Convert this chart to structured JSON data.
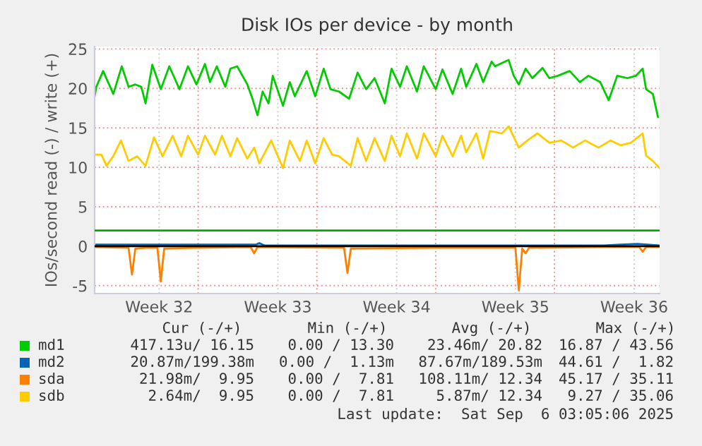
{
  "chart_data": {
    "type": "line",
    "title": "Disk IOs per device - by month",
    "ylabel": "IOs/second read (-) / write (+)",
    "xlim": [
      "2025-08-03T21:36",
      "2025-09-06T04:48"
    ],
    "ylim": [
      -6,
      25.3
    ],
    "xticks": [
      {
        "value": "2025-08-07T16:48",
        "label": "Week 32"
      },
      {
        "value": "2025-08-10T00:00",
        "label": null
      },
      {
        "value": "2025-08-14T16:48",
        "label": "Week 33"
      },
      {
        "value": "2025-08-17T00:00",
        "label": null
      },
      {
        "value": "2025-08-21T16:48",
        "label": "Week 34"
      },
      {
        "value": "2025-08-24T00:00",
        "label": null
      },
      {
        "value": "2025-08-28T16:48",
        "label": "Week 35"
      },
      {
        "value": "2025-08-31T00:00",
        "label": null
      },
      {
        "value": "2025-09-04T16:48",
        "label": "Week 36"
      }
    ],
    "yticks": [
      -5,
      0,
      5,
      10,
      15,
      20,
      25
    ],
    "grid": true,
    "legend": "bottom",
    "marker": "none",
    "line_style": "solid",
    "ref_lines": [
      {
        "axis": "y",
        "value": 2,
        "color": "#00aa00"
      },
      {
        "axis": "y",
        "value": 0,
        "color": "#000000"
      }
    ],
    "series": [
      {
        "name": "md1",
        "color": "#00cc00",
        "x": [
          "2025-08-03T21:36",
          "2025-08-04T00:00",
          "2025-08-04T09:36",
          "2025-08-05T00:00",
          "2025-08-05T12:00",
          "2025-08-05T21:36",
          "2025-08-06T07:12",
          "2025-08-06T15:36",
          "2025-08-06T21:36",
          "2025-08-07T07:12",
          "2025-08-07T19:12",
          "2025-08-08T07:12",
          "2025-08-08T21:36",
          "2025-08-09T09:36",
          "2025-08-09T21:36",
          "2025-08-10T09:36",
          "2025-08-10T16:48",
          "2025-08-11T02:24",
          "2025-08-11T14:24",
          "2025-08-11T21:36",
          "2025-08-12T07:12",
          "2025-08-12T21:36",
          "2025-08-13T04:48",
          "2025-08-13T12:00",
          "2025-08-13T19:12",
          "2025-08-14T03:36",
          "2025-08-14T09:36",
          "2025-08-15T00:00",
          "2025-08-15T09:36",
          "2025-08-15T16:48",
          "2025-08-16T09:36",
          "2025-08-16T21:36",
          "2025-08-17T09:36",
          "2025-08-17T19:12",
          "2025-08-18T07:12",
          "2025-08-18T21:36",
          "2025-08-19T09:36",
          "2025-08-19T21:36",
          "2025-08-20T09:36",
          "2025-08-21T00:00",
          "2025-08-21T09:36",
          "2025-08-21T21:36",
          "2025-08-22T07:12",
          "2025-08-22T21:36",
          "2025-08-23T07:12",
          "2025-08-24T00:00",
          "2025-08-24T09:36",
          "2025-08-25T00:00",
          "2025-08-25T12:00",
          "2025-08-25T19:12",
          "2025-08-26T09:36",
          "2025-08-26T19:12",
          "2025-08-27T07:12",
          "2025-08-27T12:00",
          "2025-08-27T19:12",
          "2025-08-28T07:12",
          "2025-08-28T14:24",
          "2025-08-28T21:36",
          "2025-08-29T07:12",
          "2025-08-29T16:48",
          "2025-08-30T07:12",
          "2025-08-30T16:48",
          "2025-08-31T04:48",
          "2025-08-31T21:36",
          "2025-09-01T12:00",
          "2025-09-02T00:00",
          "2025-09-02T16:48",
          "2025-09-03T04:48",
          "2025-09-03T16:48",
          "2025-09-04T07:12",
          "2025-09-04T19:12",
          "2025-09-05T04:48",
          "2025-09-05T09:36",
          "2025-09-05T19:12",
          "2025-09-06T02:24"
        ],
        "values": [
          19,
          20.2,
          22.2,
          19.3,
          22.8,
          20.2,
          20.5,
          20.2,
          18.1,
          23,
          19.9,
          22.8,
          19.9,
          22.8,
          20.5,
          23.1,
          20.8,
          22.8,
          20.2,
          22.5,
          22.8,
          20.5,
          18.7,
          16.6,
          19.6,
          18.1,
          21.6,
          17.8,
          20.8,
          19,
          22.2,
          19,
          22.5,
          19.9,
          19.6,
          18.7,
          22,
          19.9,
          21.3,
          18.1,
          22.5,
          20.2,
          22.8,
          19.6,
          22.8,
          19.9,
          22.4,
          19.3,
          22.5,
          20.2,
          23.1,
          20.8,
          23.4,
          22.8,
          23.1,
          23.6,
          21.6,
          20.5,
          22.5,
          21.3,
          22.6,
          21.3,
          21.6,
          22.2,
          20.8,
          21.6,
          20.8,
          18.5,
          21.6,
          21.3,
          21.6,
          22.5,
          19.9,
          19.3,
          16.4
        ]
      },
      {
        "name": "md2",
        "color": "#0066b3",
        "x": [
          "2025-08-03T21:36",
          "2025-08-13T09:36",
          "2025-08-13T14:24",
          "2025-08-13T21:36",
          "2025-09-02T21:36",
          "2025-09-03T21:36",
          "2025-09-04T21:36",
          "2025-09-06T04:48"
        ],
        "values": [
          0.2,
          0.2,
          0.4,
          0.1,
          0.1,
          0.2,
          0.3,
          0.1
        ]
      },
      {
        "name": "sda",
        "color": "#ff8000",
        "x": [
          "2025-08-03T21:36",
          "2025-08-05T21:36",
          "2025-08-06T02:24",
          "2025-08-06T07:12",
          "2025-08-06T21:36",
          "2025-08-07T14:24",
          "2025-08-07T19:12",
          "2025-08-08T00:00",
          "2025-08-09T21:36",
          "2025-08-13T02:24",
          "2025-08-13T07:12",
          "2025-08-13T12:00",
          "2025-08-18T14:24",
          "2025-08-18T19:12",
          "2025-08-19T00:00",
          "2025-08-23T21:36",
          "2025-08-28T16:48",
          "2025-08-28T21:36",
          "2025-08-29T02:24",
          "2025-08-29T07:12",
          "2025-08-29T12:00",
          "2025-09-02T21:36",
          "2025-09-05T00:00",
          "2025-09-05T04:48",
          "2025-09-05T09:36",
          "2025-09-06T04:48"
        ],
        "values": [
          -0.1,
          -0.2,
          -3.6,
          -0.3,
          -0.2,
          -0.2,
          -4.5,
          -0.3,
          -0.2,
          -0.1,
          -0.9,
          -0.1,
          -0.2,
          -3.4,
          -0.3,
          -0.2,
          -0.2,
          -5.6,
          -0.3,
          -0.9,
          -0.2,
          -0.1,
          -0.1,
          -0.7,
          -0.1,
          -0.1
        ]
      },
      {
        "name": "sdb",
        "color": "#ffcc00",
        "x": [
          "2025-08-03T21:36",
          "2025-08-04T07:12",
          "2025-08-04T14:24",
          "2025-08-05T00:00",
          "2025-08-05T10:48",
          "2025-08-05T21:36",
          "2025-08-06T09:36",
          "2025-08-06T21:36",
          "2025-08-07T09:36",
          "2025-08-07T21:36",
          "2025-08-08T12:00",
          "2025-08-09T00:00",
          "2025-08-09T09:36",
          "2025-08-10T00:00",
          "2025-08-10T09:36",
          "2025-08-11T00:00",
          "2025-08-11T09:36",
          "2025-08-11T21:36",
          "2025-08-12T07:12",
          "2025-08-12T21:36",
          "2025-08-13T07:12",
          "2025-08-13T14:24",
          "2025-08-14T07:12",
          "2025-08-15T00:00",
          "2025-08-15T09:36",
          "2025-08-16T00:00",
          "2025-08-16T09:36",
          "2025-08-16T21:36",
          "2025-08-17T09:36",
          "2025-08-17T21:36",
          "2025-08-18T07:12",
          "2025-08-19T00:00",
          "2025-08-19T09:36",
          "2025-08-19T21:36",
          "2025-08-20T09:36",
          "2025-08-21T00:00",
          "2025-08-21T09:36",
          "2025-08-21T21:36",
          "2025-08-22T07:12",
          "2025-08-22T21:36",
          "2025-08-23T07:12",
          "2025-08-24T00:00",
          "2025-08-24T09:36",
          "2025-08-25T00:00",
          "2025-08-25T12:00",
          "2025-08-25T19:12",
          "2025-08-26T09:36",
          "2025-08-26T19:12",
          "2025-08-27T04:48",
          "2025-08-27T21:36",
          "2025-08-28T07:12",
          "2025-08-28T21:36",
          "2025-08-29T09:36",
          "2025-08-30T00:00",
          "2025-08-30T16:48",
          "2025-08-31T09:36",
          "2025-09-01T02:24",
          "2025-09-01T19:12",
          "2025-09-02T14:24",
          "2025-09-03T07:12",
          "2025-09-03T21:36",
          "2025-09-04T12:00",
          "2025-09-05T04:48",
          "2025-09-05T09:36",
          "2025-09-05T19:12",
          "2025-09-06T04:48"
        ],
        "values": [
          11.6,
          11.6,
          10.2,
          11.4,
          13.4,
          10.8,
          11.4,
          10.2,
          13.8,
          11.4,
          14,
          11.4,
          14,
          11.6,
          14,
          11.6,
          14,
          11.4,
          13.7,
          11.1,
          12.5,
          10.5,
          13.4,
          9.9,
          13.4,
          10.8,
          13.4,
          10.5,
          13.7,
          11.6,
          11.4,
          10.2,
          13.7,
          10.8,
          13.7,
          10.8,
          14,
          11.4,
          14.3,
          11.1,
          14.3,
          11.4,
          14,
          11.4,
          14,
          11.9,
          14.3,
          11.1,
          14.6,
          14.3,
          15.2,
          12.5,
          13.4,
          14.3,
          13.1,
          13.4,
          12.5,
          13.4,
          12.5,
          13.4,
          12.8,
          13.1,
          14.3,
          11.5,
          10.8,
          9.9
        ]
      }
    ],
    "annotations": [
      "Cur (-/+)",
      "Min (-/+)",
      "Avg (-/+)",
      "Max (-/+)",
      "417.13u/ 16.15",
      "0.00 / 13.30",
      "23.46m/ 20.82",
      "16.87 / 43.56",
      "20.87m/199.38m",
      "0.00 /  1.13m",
      "87.67m/189.53m",
      "44.61 /  1.82",
      "21.98m/  9.95",
      "0.00 /  7.81",
      "108.11m/ 12.34",
      "45.17 / 35.11",
      "2.64m/  9.95",
      "0.00 /  7.81",
      "5.87m/ 12.34",
      "9.27 / 35.06",
      "Last update:  Sat Sep  6 03:05:06 2025"
    ]
  }
}
